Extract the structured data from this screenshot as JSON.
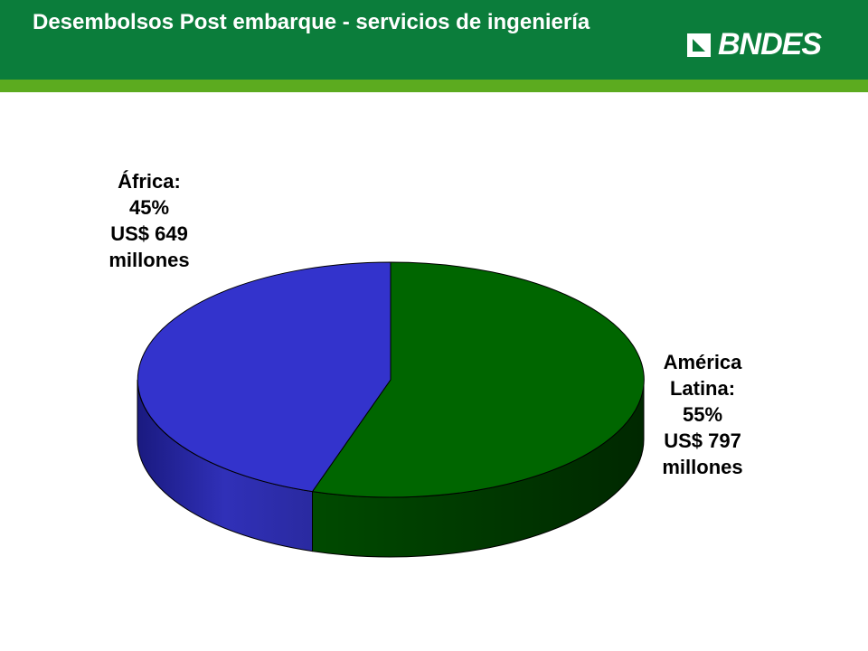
{
  "header": {
    "title": "Desembolsos Post embarque - servicios de ingeniería",
    "logo": "BNDES"
  },
  "chart_data": {
    "type": "pie3d",
    "categories": [
      "África:",
      "América Latina:"
    ],
    "values": [
      45,
      55
    ],
    "value_labels": [
      "45%",
      "55%"
    ],
    "amount_labels": [
      "US$ 649",
      "US$ 797"
    ],
    "unit": "millones",
    "colors": [
      "#3333cc",
      "#006600"
    ]
  }
}
